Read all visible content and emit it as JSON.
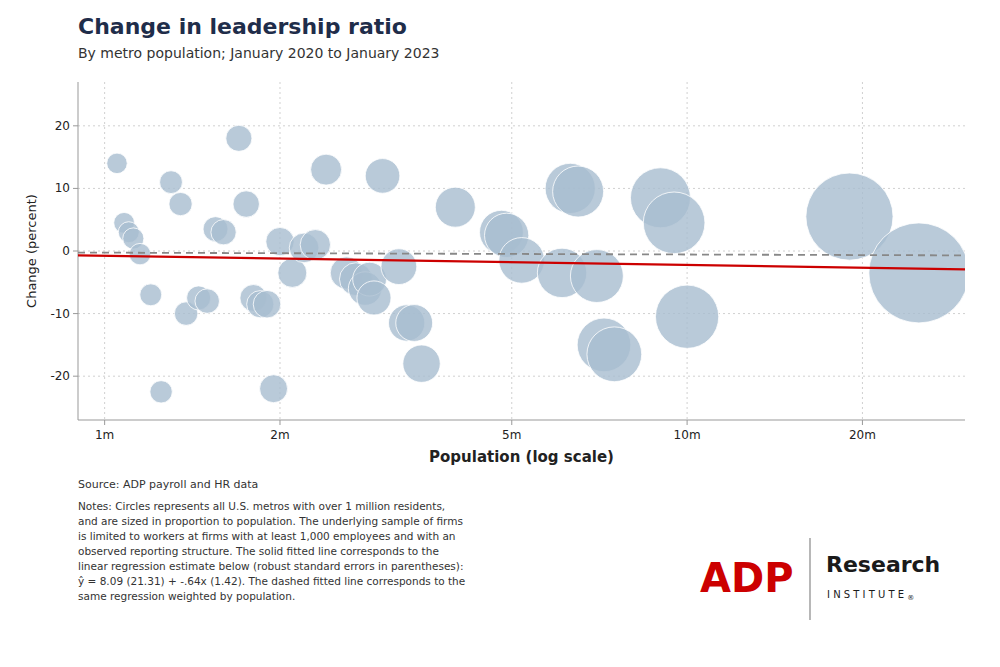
{
  "chart_data": {
    "type": "scatter",
    "title": "Change in leadership ratio",
    "subtitle": "By metro population; January 2020 to January 2023",
    "x_label": "Population (log scale)",
    "y_label": "Change (percent)",
    "source": "Source: ADP payroll and HR data",
    "notes": "Notes: Circles represents all U.S. metros with over 1 million residents,\nand are sized in proportion to population. The underlying sample of firms\nis limited to workers at firms with at least 1,000 employees and with an\nobserved reporting structure. The solid fitted line corresponds to the\nlinear regression estimate below (robust standard errors in parentheses):\nŷ = 8.09 (21.31) + -.64x (1.42). The dashed fitted line corresponds to the\nsame regression weighted by population.",
    "logo": [
      "ADP",
      "Research",
      "I N S T I T U T E",
      "®"
    ],
    "log": "x",
    "grid": true,
    "xlim": [
      900000,
      30000000
    ],
    "xticks": [
      {
        "value": 1000000,
        "label": "1m"
      },
      {
        "value": 2000000,
        "label": "2m"
      },
      {
        "value": 5000000,
        "label": "5m"
      },
      {
        "value": 10000000,
        "label": "10m"
      },
      {
        "value": 20000000,
        "label": "20m"
      }
    ],
    "ylim": [
      -27,
      27
    ],
    "yticks": [
      -20,
      -10,
      0,
      10,
      20
    ],
    "series": [
      {
        "type": "scatter",
        "color": "#a8bdd0",
        "marker": "circle",
        "x": [
          1050000,
          1080000,
          1100000,
          1120000,
          1150000,
          1200000,
          1250000,
          1300000,
          1350000,
          1380000,
          1450000,
          1500000,
          1550000,
          1600000,
          1700000,
          1750000,
          1800000,
          1850000,
          1900000,
          1950000,
          2000000,
          2100000,
          2200000,
          2300000,
          2400000,
          2600000,
          2700000,
          2800000,
          2850000,
          2900000,
          3000000,
          3200000,
          3300000,
          3400000,
          3500000,
          4000000,
          4800000,
          4900000,
          5200000,
          6100000,
          6300000,
          6500000,
          7000000,
          7200000,
          7500000,
          9000000,
          9500000,
          10000000,
          19000000,
          25000000
        ],
        "values": [
          14.0,
          4.5,
          3.0,
          2.0,
          -0.5,
          -7.0,
          -22.5,
          11.0,
          7.5,
          -10.0,
          -7.5,
          -8.0,
          3.5,
          3.0,
          18.0,
          7.5,
          -7.5,
          -8.5,
          -8.5,
          -22.0,
          1.5,
          -3.5,
          0.5,
          1.0,
          13.0,
          -3.5,
          -4.5,
          -6.0,
          -4.5,
          -7.5,
          12.0,
          -2.5,
          -11.5,
          -11.5,
          -18.0,
          7.0,
          3.0,
          2.5,
          -1.5,
          -3.5,
          10.0,
          9.5,
          -4.0,
          -15.0,
          -16.5,
          8.5,
          4.5,
          -10.5,
          5.5,
          -3.5
        ],
        "sizes": [
          1050000,
          1080000,
          1100000,
          1120000,
          1150000,
          1200000,
          1250000,
          1300000,
          1350000,
          1380000,
          1450000,
          1500000,
          1550000,
          1600000,
          1700000,
          1750000,
          1800000,
          1850000,
          1900000,
          1950000,
          2000000,
          2100000,
          2200000,
          2300000,
          2400000,
          2600000,
          2700000,
          2800000,
          2850000,
          2900000,
          3000000,
          3200000,
          3300000,
          3400000,
          3500000,
          4000000,
          4800000,
          4900000,
          5200000,
          6100000,
          6300000,
          6500000,
          7000000,
          7200000,
          7500000,
          9000000,
          9500000,
          10000000,
          19000000,
          25000000
        ]
      },
      {
        "type": "line",
        "color": "#cc0000",
        "line_style": "solid",
        "x": [
          900000,
          30000000
        ],
        "values": [
          -0.6845,
          -2.9287
        ]
      },
      {
        "type": "line",
        "color": "#888888",
        "line_style": "dashed",
        "x": [
          900000,
          30000000
        ],
        "values": [
          -0.25,
          -0.7
        ]
      }
    ]
  }
}
